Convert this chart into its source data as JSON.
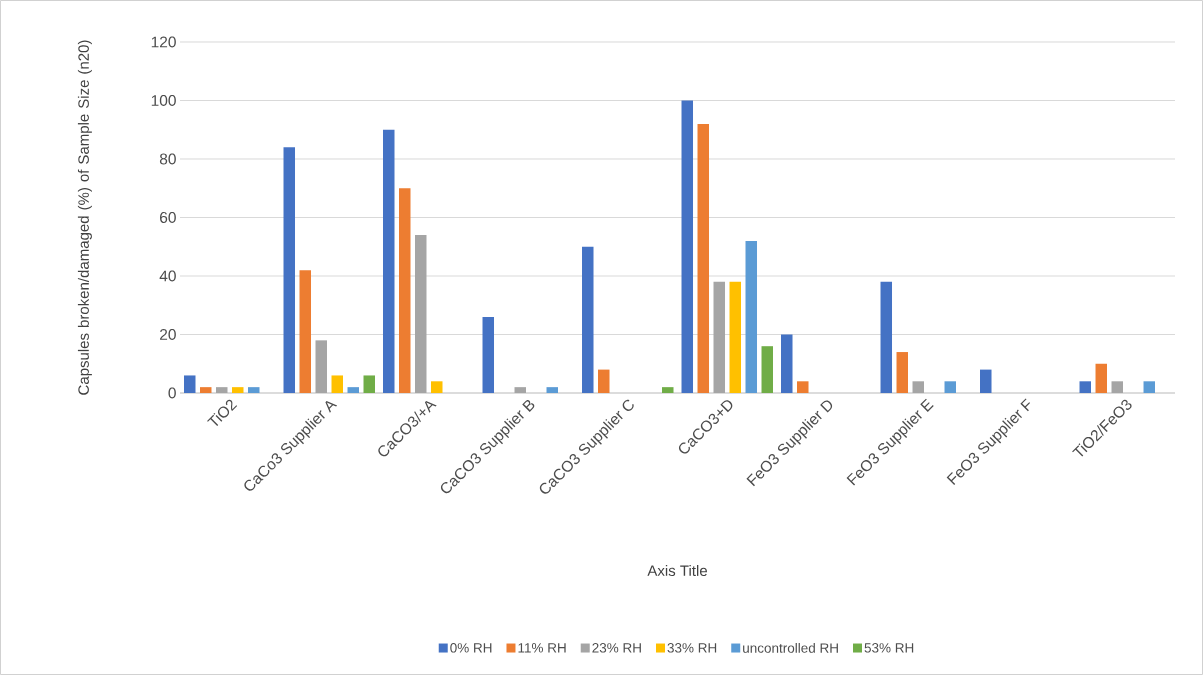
{
  "chart_data": {
    "type": "bar",
    "xlabel": "Axis Title",
    "ylabel": "Capsules broken/damaged (%) of Sample Size (n20)",
    "categories": [
      "TiO2",
      "CaCo3 Supplier A",
      "CaCO3/+A",
      "CaCO3 Supplier B",
      "CaCO3 Supplier C",
      "CaCO3+D",
      "FeO3 Supplier D",
      "FeO3 Supplier E",
      "FeO3 Supplier F",
      "TiO2/FeO3"
    ],
    "series": [
      {
        "name": "0% RH",
        "color": "#4472c4",
        "values": [
          6,
          84,
          90,
          26,
          50,
          100,
          20,
          38,
          8,
          4
        ]
      },
      {
        "name": "11% RH",
        "color": "#ed7d31",
        "values": [
          2,
          42,
          70,
          null,
          8,
          92,
          4,
          14,
          null,
          10
        ]
      },
      {
        "name": "23% RH",
        "color": "#a5a5a5",
        "values": [
          2,
          18,
          54,
          2,
          null,
          38,
          null,
          4,
          null,
          4
        ]
      },
      {
        "name": "33% RH",
        "color": "#ffc000",
        "values": [
          2,
          6,
          4,
          null,
          null,
          38,
          null,
          null,
          null,
          null
        ]
      },
      {
        "name": "uncontrolled RH",
        "color": "#5b9bd5",
        "values": [
          2,
          2,
          null,
          2,
          null,
          52,
          null,
          4,
          null,
          4
        ]
      },
      {
        "name": "53% RH",
        "color": "#70ad47",
        "values": [
          null,
          6,
          null,
          null,
          2,
          16,
          null,
          null,
          null,
          null
        ]
      }
    ],
    "ylim": [
      0,
      120
    ],
    "yticks": [
      0,
      20,
      40,
      60,
      80,
      100,
      120
    ],
    "grid": "y",
    "legend": "bottom"
  }
}
